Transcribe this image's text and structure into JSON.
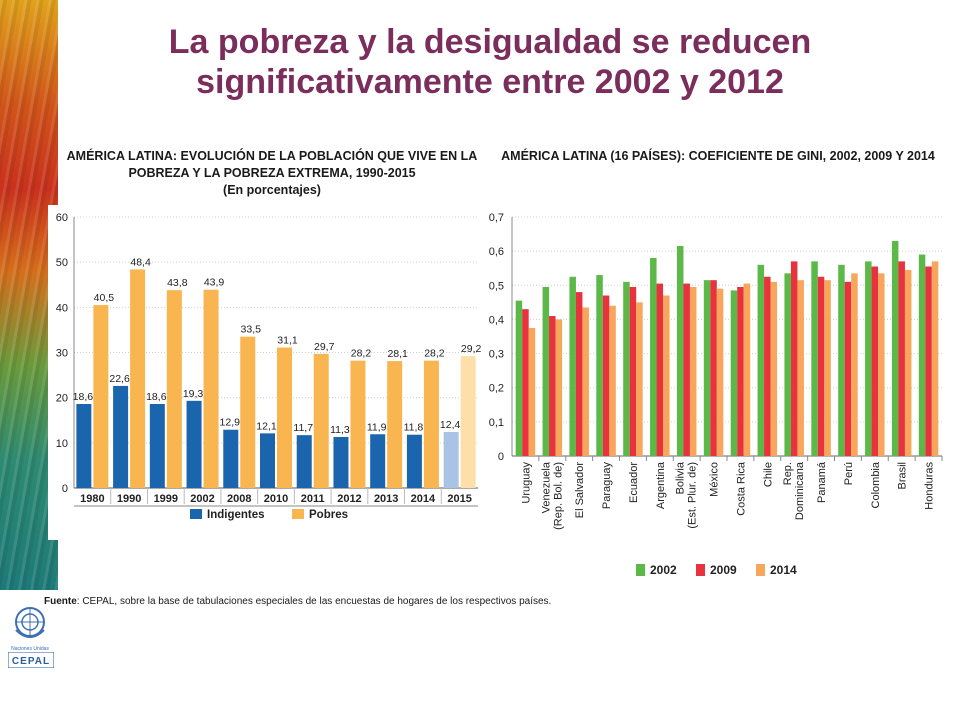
{
  "title": "La pobreza y la desigualdad se reducen significativamente entre 2002 y  2012",
  "source": {
    "label": "Fuente",
    "text": ": CEPAL, sobre la base de tabulaciones especiales de las encuestas de hogares de los respectivos países."
  },
  "logos": {
    "un_text": "Naciones Unidas",
    "cepal_text": "CEPAL"
  },
  "chart_data": [
    {
      "type": "bar",
      "title": "AMÉRICA LATINA: EVOLUCIÓN DE LA POBLACIÓN QUE VIVE EN LA POBREZA Y LA POBREZA EXTREMA, 1990-2015",
      "subtitle": "(En porcentajes)",
      "categories": [
        "1980",
        "1990",
        "1999",
        "2002",
        "2008",
        "2010",
        "2011",
        "2012",
        "2013",
        "2014",
        "2015"
      ],
      "series": [
        {
          "name": "Indigentes",
          "color": "#1b64ae",
          "projection_color": "#a9c3e4",
          "values": [
            18.6,
            22.6,
            18.6,
            19.3,
            12.9,
            12.1,
            11.7,
            11.3,
            11.9,
            11.8,
            12.4
          ],
          "labels": [
            "18,6",
            "22,6",
            "18,6",
            "19,3",
            "12,9",
            "12,1",
            "11,7",
            "11,3",
            "11,9",
            "11,8",
            "12,4"
          ]
        },
        {
          "name": "Pobres",
          "color": "#f9b550",
          "projection_color": "#fcdfa9",
          "values": [
            40.5,
            48.4,
            43.8,
            43.9,
            33.5,
            31.1,
            29.7,
            28.2,
            28.1,
            28.2,
            29.2
          ],
          "labels": [
            "40,5",
            "48,4",
            "43,8",
            "43,9",
            "33,5",
            "31,1",
            "29,7",
            "28,2",
            "28,1",
            "28,2",
            "29,2"
          ]
        }
      ],
      "projection_category": "2015",
      "ylim": [
        0,
        60
      ],
      "yticks": [
        "0",
        "10",
        "20",
        "30",
        "40",
        "50",
        "60"
      ],
      "legend": "bottom",
      "grid": true
    },
    {
      "type": "bar",
      "title": "AMÉRICA LATINA (16 PAÍSES): COEFICIENTE DE GINI, 2002, 2009 Y 2014",
      "categories": [
        "Uruguay",
        "Venezuela\n(Rep. Bol. de)",
        "El Salvador",
        "Paraguay",
        "Ecuador",
        "Argentina",
        "Bolivia\n(Est. Plur. de)",
        "México",
        "Costa Rica",
        "Chile",
        "Rep.\nDominicana",
        "Panamá",
        "Perú",
        "Colombia",
        "Brasil",
        "Honduras"
      ],
      "series": [
        {
          "name": "2002",
          "color": "#5cb947",
          "values": [
            0.455,
            0.495,
            0.525,
            0.53,
            0.51,
            0.58,
            0.615,
            0.515,
            0.485,
            0.56,
            0.535,
            0.57,
            0.56,
            0.57,
            0.63,
            0.59
          ]
        },
        {
          "name": "2009",
          "color": "#e8323e",
          "values": [
            0.43,
            0.41,
            0.48,
            0.47,
            0.495,
            0.505,
            0.505,
            0.515,
            0.495,
            0.525,
            0.57,
            0.525,
            0.51,
            0.555,
            0.57,
            0.555
          ]
        },
        {
          "name": "2014",
          "color": "#f8a65c",
          "values": [
            0.375,
            0.4,
            0.435,
            0.44,
            0.45,
            0.47,
            0.495,
            0.49,
            0.505,
            0.51,
            0.515,
            0.515,
            0.535,
            0.535,
            0.545,
            0.57
          ]
        }
      ],
      "ylim": [
        0,
        0.7
      ],
      "yticks": [
        "0",
        "0,1",
        "0,2",
        "0,3",
        "0,4",
        "0,5",
        "0,6",
        "0,7"
      ],
      "legend": "bottom",
      "grid": true
    }
  ]
}
